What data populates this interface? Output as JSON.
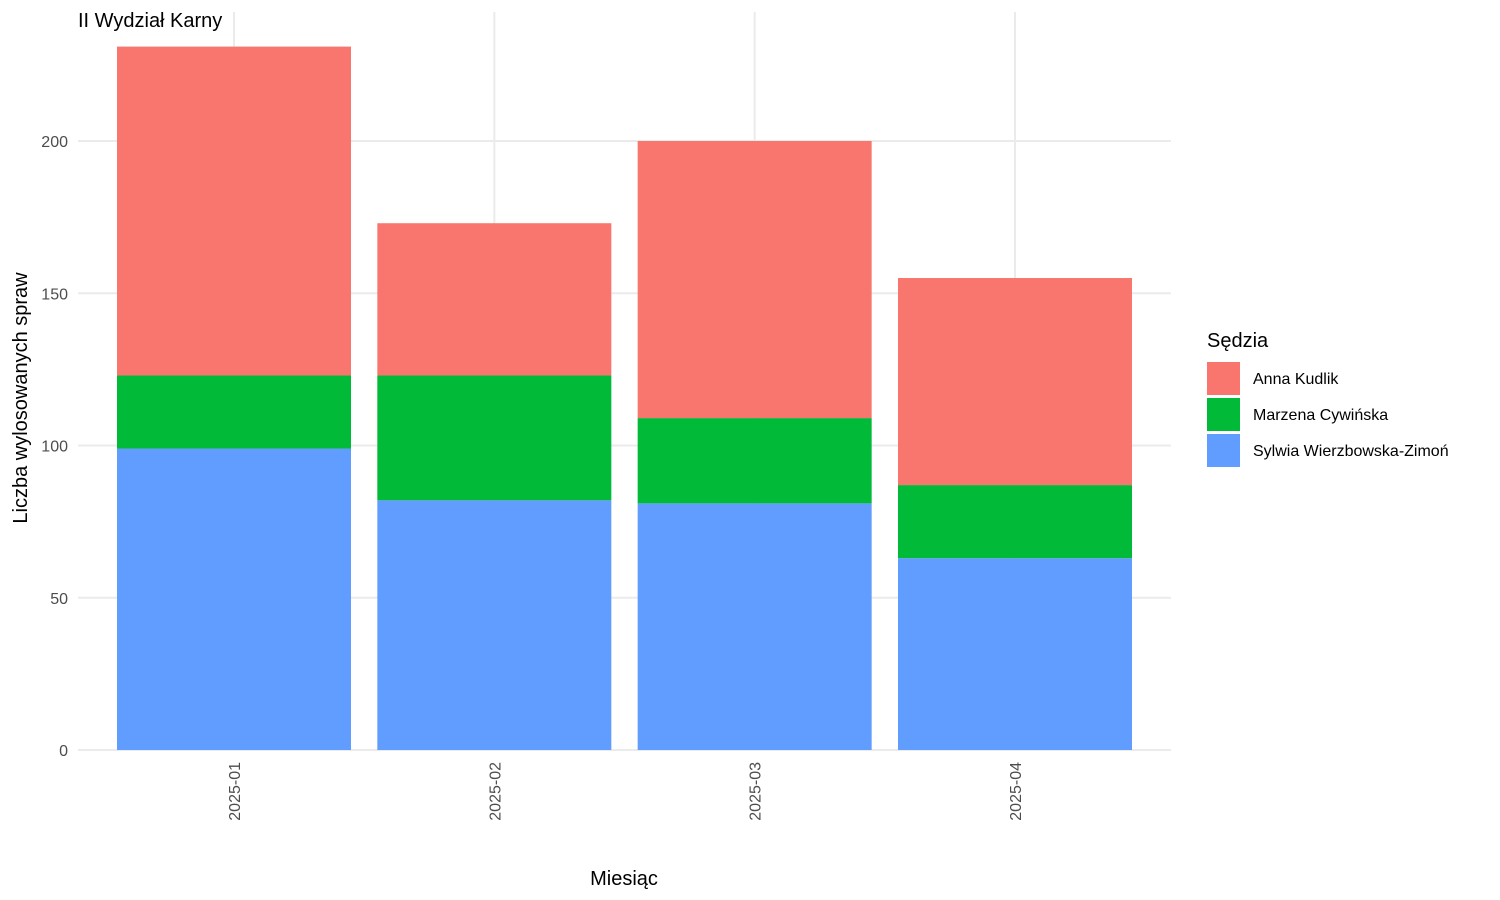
{
  "chart_data": {
    "type": "bar",
    "stacked": true,
    "title": "II Wydział Karny",
    "xlabel": "Miesiąc",
    "ylabel": "Liczba wylosowanych spraw",
    "categories": [
      "2025-01",
      "2025-02",
      "2025-03",
      "2025-04"
    ],
    "ylim": [
      0,
      242
    ],
    "yticks": [
      0,
      50,
      100,
      150,
      200
    ],
    "grid": true,
    "legend_position": "right",
    "legend_title": "Sędzia",
    "series": [
      {
        "name": "Sylwia Wierzbowska-Zimoń",
        "color": "#619CFF",
        "values": [
          99,
          82,
          81,
          63
        ]
      },
      {
        "name": "Marzena Cywińska",
        "color": "#00BA38",
        "values": [
          24,
          41,
          28,
          24
        ]
      },
      {
        "name": "Anna Kudlik",
        "color": "#F8766D",
        "values": [
          108,
          50,
          91,
          68
        ]
      }
    ],
    "legend_order": [
      "Anna Kudlik",
      "Marzena Cywińska",
      "Sylwia Wierzbowska-Zimoń"
    ]
  }
}
